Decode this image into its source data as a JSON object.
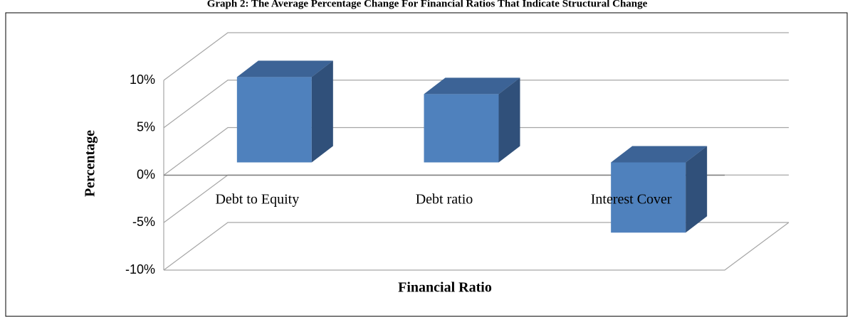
{
  "chart_data": {
    "type": "bar3d",
    "title": "Graph 2:  The Average Percentage Change For Financial Ratios That Indicate Structural Change",
    "xlabel": "Financial Ratio",
    "ylabel": "Percentage",
    "categories": [
      "Debt to Equity",
      "Debt ratio",
      "Interest Cover"
    ],
    "values": [
      9,
      7.2,
      -7.4
    ],
    "color": "#4f81bd",
    "ylim": [
      -10,
      10
    ],
    "yticks": [
      {
        "value": -10,
        "label": "-10%"
      },
      {
        "value": -5,
        "label": "-5%"
      },
      {
        "value": 0,
        "label": "0%"
      },
      {
        "value": 5,
        "label": "5%"
      },
      {
        "value": 10,
        "label": "10%"
      }
    ],
    "grid": true
  }
}
